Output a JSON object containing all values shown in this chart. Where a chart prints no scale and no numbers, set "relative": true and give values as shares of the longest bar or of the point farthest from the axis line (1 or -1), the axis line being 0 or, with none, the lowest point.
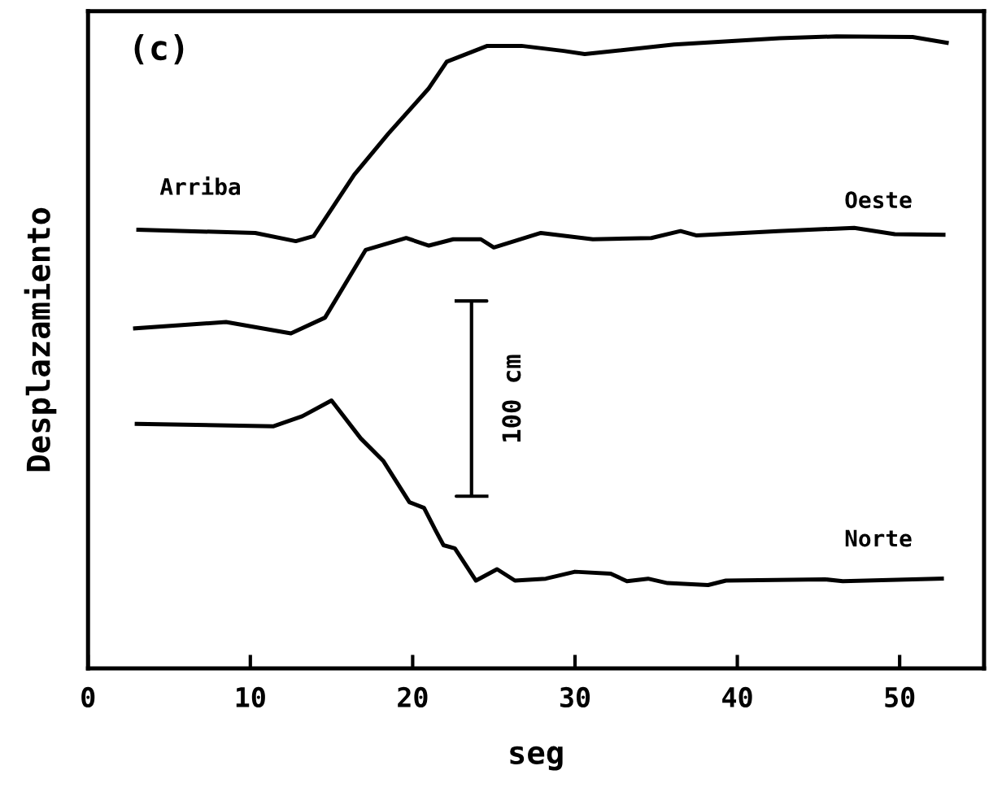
{
  "chart_data": {
    "type": "line",
    "relative": true,
    "xlabel": "seg",
    "ylabel": "Desplazamiento",
    "xlim": [
      0,
      55.2
    ],
    "xticks": [
      0,
      10,
      20,
      30,
      40,
      50
    ],
    "tick_labels": "x",
    "grid": false,
    "legend": false,
    "marker": "none",
    "line_style": "solid",
    "annotations": [
      "(c)",
      "100 cm"
    ],
    "series": [
      {
        "name": "Arriba",
        "color": "#000000",
        "x": [
          3.1,
          10.3,
          12.8,
          13.9,
          16.4,
          18.5,
          21.0,
          22.1,
          24.6,
          26.7,
          29.3,
          30.6,
          36.1,
          42.6,
          46.1,
          50.8,
          52.9
        ],
        "values": [
          0.694,
          0.689,
          0.676,
          0.684,
          0.781,
          0.846,
          0.918,
          0.96,
          0.985,
          0.985,
          0.977,
          0.972,
          0.987,
          0.997,
          1.0,
          0.999,
          0.99
        ]
      },
      {
        "name": "Oeste",
        "color": "#000000",
        "x": [
          2.9,
          8.5,
          12.5,
          14.6,
          17.1,
          19.6,
          21.0,
          22.5,
          24.2,
          25.0,
          27.9,
          31.1,
          34.7,
          36.5,
          37.5,
          42.5,
          47.2,
          49.7,
          52.7
        ],
        "values": [
          0.538,
          0.548,
          0.53,
          0.555,
          0.662,
          0.681,
          0.669,
          0.679,
          0.679,
          0.666,
          0.689,
          0.679,
          0.681,
          0.692,
          0.685,
          0.692,
          0.697,
          0.687,
          0.686
        ]
      },
      {
        "name": "Norte",
        "color": "#000000",
        "x": [
          3.0,
          11.4,
          13.2,
          15.0,
          16.8,
          18.2,
          19.8,
          20.7,
          21.4,
          21.9,
          22.6,
          23.9,
          25.2,
          26.3,
          28.2,
          30.0,
          32.2,
          33.2,
          34.5,
          35.7,
          38.2,
          39.3,
          45.4,
          46.5,
          52.6
        ],
        "values": [
          0.387,
          0.383,
          0.399,
          0.424,
          0.364,
          0.328,
          0.263,
          0.254,
          0.219,
          0.195,
          0.19,
          0.139,
          0.157,
          0.139,
          0.142,
          0.153,
          0.15,
          0.138,
          0.142,
          0.135,
          0.132,
          0.139,
          0.141,
          0.138,
          0.142
        ]
      }
    ]
  }
}
